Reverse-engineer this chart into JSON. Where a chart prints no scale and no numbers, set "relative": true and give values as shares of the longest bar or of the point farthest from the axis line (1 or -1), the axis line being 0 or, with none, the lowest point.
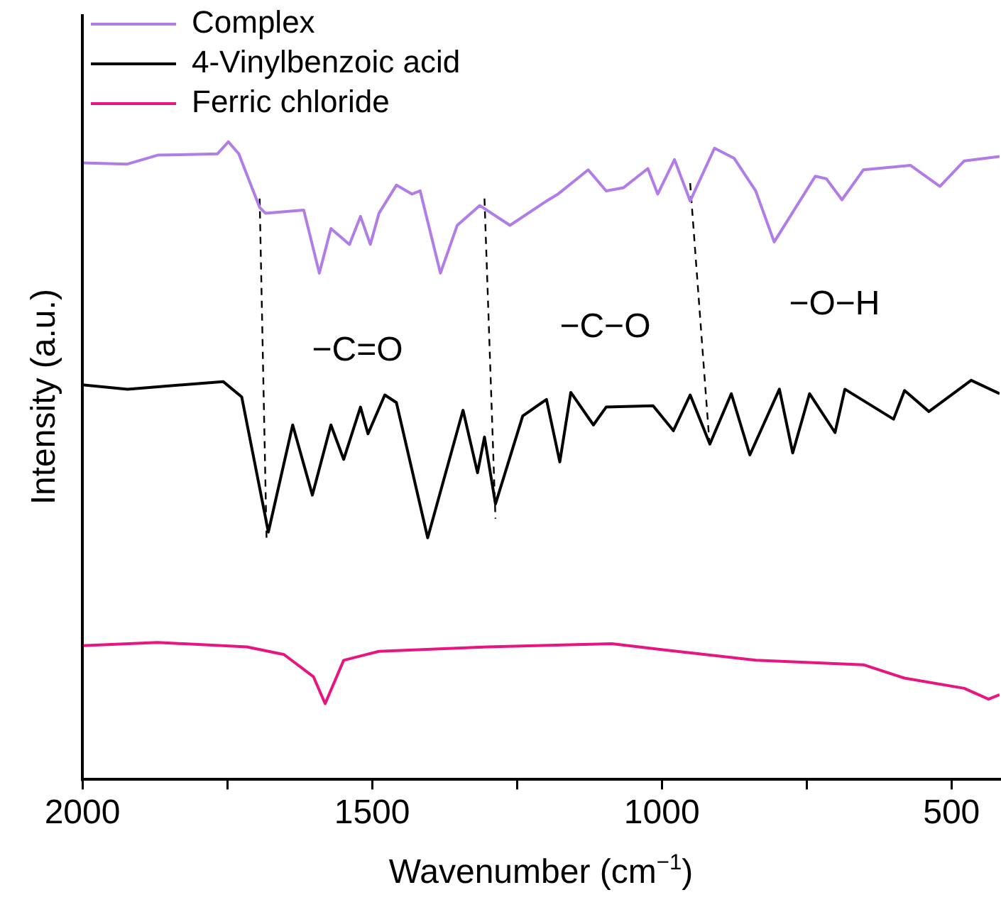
{
  "chart_data": {
    "type": "line",
    "relative": true,
    "xlabel": "Wavenumber (cm$^{−1}$)",
    "ylabel": "Intensity (a.u.)",
    "xlim": [
      2000,
      417
    ],
    "xticks": [
      2000,
      {
        "value": 1750,
        "label": null
      },
      1500,
      {
        "value": 1250,
        "label": null
      },
      1000,
      {
        "value": 750,
        "label": null
      },
      500
    ],
    "grid": false,
    "legend": "top left",
    "marker": "none",
    "line_style": "solid",
    "series": [
      {
        "name": "Complex",
        "color": "#b07ce8",
        "x": [
          2000,
          1922,
          1870,
          1767,
          1748,
          1730,
          1694,
          1684,
          1618,
          1591,
          1571,
          1539,
          1520,
          1503,
          1488,
          1458,
          1431,
          1417,
          1382,
          1353,
          1314,
          1262,
          1199,
          1179,
          1127,
          1096,
          1066,
          1024,
          1007,
          978,
          951,
          909,
          875,
          838,
          806,
          735,
          716,
          689,
          652,
          571,
          520,
          478,
          417
        ],
        "values": [
          0.967,
          0.965,
          0.979,
          0.981,
          1,
          0.981,
          0.897,
          0.888,
          0.893,
          0.794,
          0.864,
          0.839,
          0.883,
          0.839,
          0.888,
          0.932,
          0.918,
          0.923,
          0.794,
          0.869,
          0.9,
          0.869,
          0.907,
          0.918,
          0.956,
          0.923,
          0.928,
          0.958,
          0.918,
          0.972,
          0.907,
          0.99,
          0.974,
          0.923,
          0.843,
          0.946,
          0.942,
          0.909,
          0.956,
          0.963,
          0.93,
          0.97,
          0.977
        ]
      },
      {
        "name": "4-Vinylbenzoic acid",
        "color": "#000000",
        "x": [
          2000,
          1922,
          1757,
          1725,
          1679,
          1637,
          1603,
          1571,
          1549,
          1520,
          1507,
          1478,
          1458,
          1404,
          1343,
          1318,
          1306,
          1287,
          1240,
          1199,
          1176,
          1157,
          1118,
          1096,
          1015,
          980,
          951,
          917,
          880,
          848,
          797,
          774,
          745,
          701,
          684,
          600,
          581,
          539,
          466,
          417
        ],
        "values": [
          0.619,
          0.612,
          0.624,
          0.6,
          0.388,
          0.556,
          0.446,
          0.556,
          0.502,
          0.584,
          0.542,
          0.603,
          0.591,
          0.379,
          0.579,
          0.481,
          0.537,
          0.432,
          0.57,
          0.596,
          0.498,
          0.607,
          0.556,
          0.584,
          0.586,
          0.547,
          0.603,
          0.526,
          0.605,
          0.509,
          0.612,
          0.512,
          0.605,
          0.544,
          0.612,
          0.565,
          0.61,
          0.577,
          0.626,
          0.605
        ]
      },
      {
        "name": "Ferric chloride",
        "color": "#e8147f",
        "x": [
          2000,
          1870,
          1716,
          1652,
          1601,
          1581,
          1549,
          1488,
          1301,
          1086,
          993,
          838,
          652,
          581,
          478,
          436,
          417
        ],
        "values": [
          0.21,
          0.215,
          0.208,
          0.196,
          0.161,
          0.119,
          0.187,
          0.201,
          0.208,
          0.213,
          0.203,
          0.187,
          0.18,
          0.159,
          0.143,
          0.126,
          0.133
        ]
      },
      {
        "color": "#000000",
        "line_style": "dashed",
        "x": [
          1694,
          1682
        ],
        "values": [
          0.911,
          0.374
        ]
      },
      {
        "color": "#000000",
        "line_style": "dashed",
        "x": [
          1306,
          1287
        ],
        "values": [
          0.911,
          0.409
        ]
      },
      {
        "color": "#000000",
        "line_style": "dashed",
        "x": [
          951,
          917
        ],
        "values": [
          0.935,
          0.519
        ]
      }
    ],
    "annotations": [
      "−C=O",
      "−C−O",
      "−O−H"
    ]
  }
}
